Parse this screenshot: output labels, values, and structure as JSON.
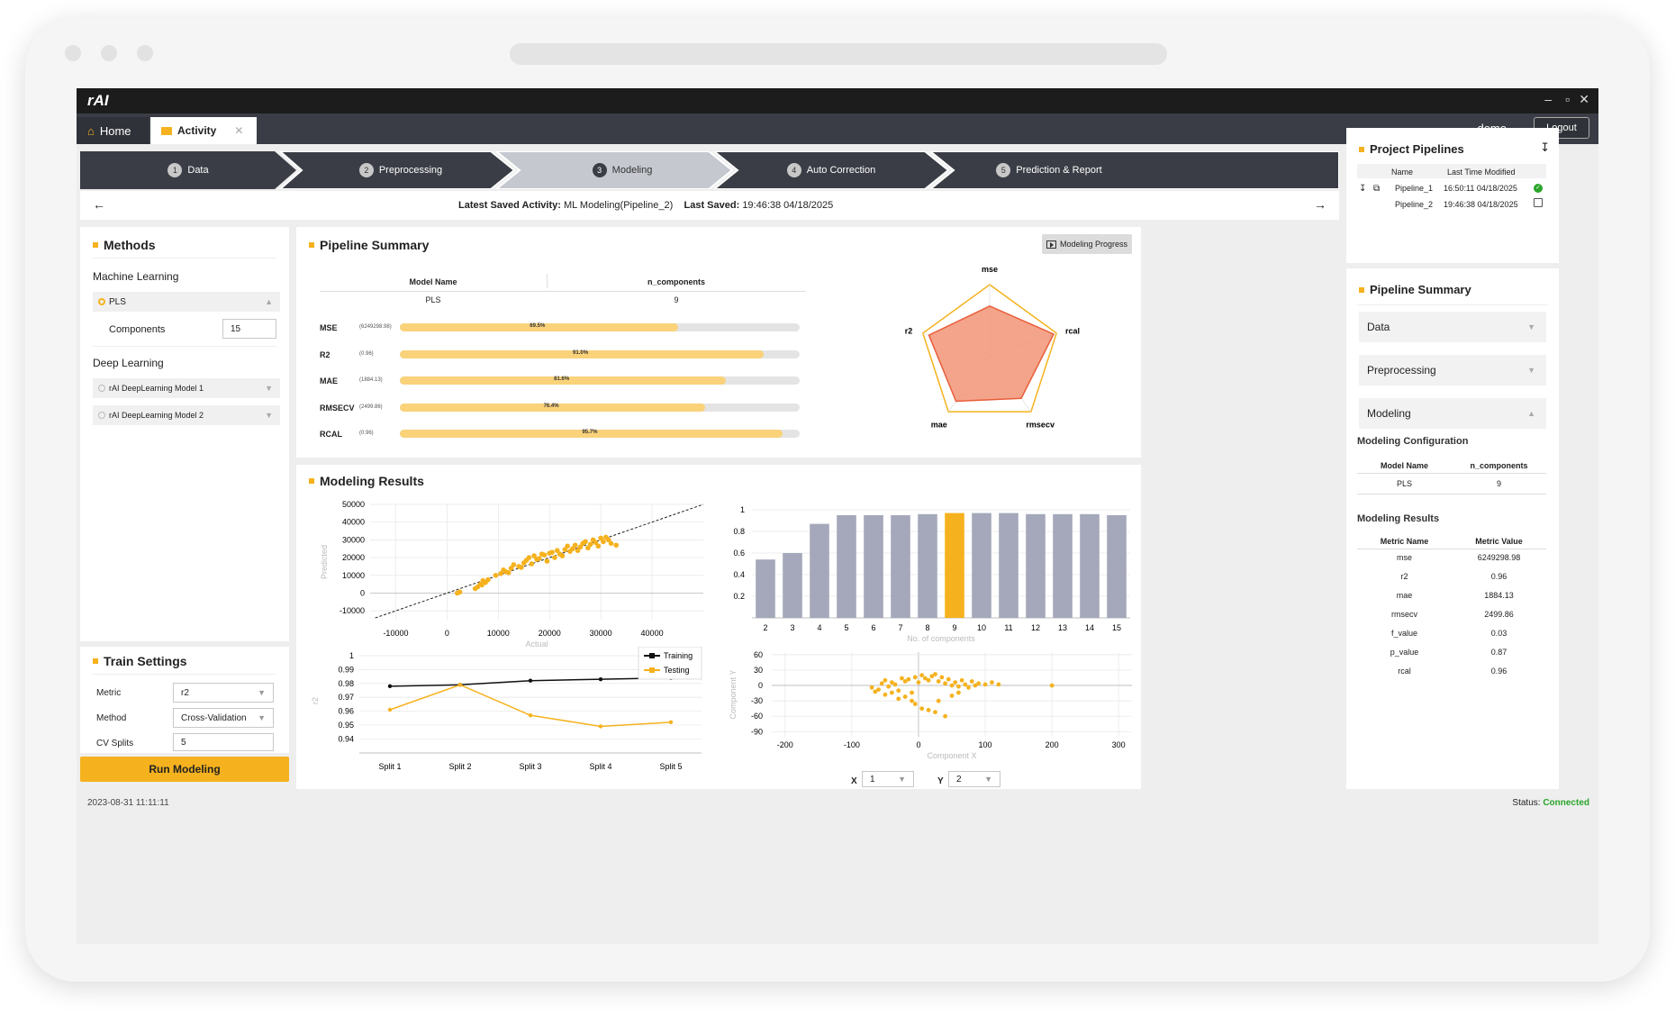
{
  "app": {
    "logo": "rAI",
    "window_controls": {
      "minimize": "–",
      "maximize": "▫",
      "close": "✕"
    },
    "tabs": [
      {
        "label": "Home"
      },
      {
        "label": "Activity"
      }
    ],
    "user": "demo",
    "logout_label": "Logout"
  },
  "steps": [
    {
      "num": "1",
      "label": "Data"
    },
    {
      "num": "2",
      "label": "Preprocessing"
    },
    {
      "num": "3",
      "label": "Modeling"
    },
    {
      "num": "4",
      "label": "Auto Correction"
    },
    {
      "num": "5",
      "label": "Prediction & Report"
    }
  ],
  "activity": {
    "latest_label": "Latest Saved Activity:",
    "latest_value": "ML Modeling(Pipeline_2)",
    "saved_label": "Last Saved:",
    "saved_value": "19:46:38 04/18/2025"
  },
  "methods": {
    "title": "Methods",
    "ml_heading": "Machine Learning",
    "pls_label": "PLS",
    "components_label": "Components",
    "components_value": "15",
    "dl_heading": "Deep Learning",
    "dl_models": [
      "rAI DeepLearning Model 1",
      "rAI DeepLearning Model 2"
    ]
  },
  "train": {
    "title": "Train Settings",
    "metric_label": "Metric",
    "metric_value": "r2",
    "method_label": "Method",
    "method_value": "Cross-Validation",
    "cv_label": "CV Splits",
    "cv_value": "5",
    "run_label": "Run Modeling"
  },
  "status_bar": {
    "timestamp": "2023-08-31 11:11:11",
    "status_label": "Status:",
    "status_value": "Connected"
  },
  "summary": {
    "title": "Pipeline Summary",
    "progress_button": "Modeling Progress",
    "col_model": "Model Name",
    "col_ncomp": "n_components",
    "model_name": "PLS",
    "n_components": "9",
    "metrics": [
      {
        "name": "MSE",
        "value": "(6249298.98)",
        "pct": "69.5%",
        "fraction": 0.695
      },
      {
        "name": "R2",
        "value": "(0.96)",
        "pct": "91.0%",
        "fraction": 0.91
      },
      {
        "name": "MAE",
        "value": "(1884.13)",
        "pct": "81.6%",
        "fraction": 0.816
      },
      {
        "name": "RMSECV",
        "value": "(2499.86)",
        "pct": "76.4%",
        "fraction": 0.764
      },
      {
        "name": "RCAL",
        "value": "(0.96)",
        "pct": "95.7%",
        "fraction": 0.957
      }
    ]
  },
  "results": {
    "title": "Modeling Results",
    "x_select_label": "X",
    "x_select_value": "1",
    "y_select_label": "Y",
    "y_select_value": "2"
  },
  "project": {
    "title": "Project Pipelines",
    "col_name": "Name",
    "col_modified": "Last Time Modified",
    "rows": [
      {
        "name": "Pipeline_1",
        "modified": "16:50:11 04/18/2025"
      },
      {
        "name": "Pipeline_2",
        "modified": "19:46:38 04/18/2025"
      }
    ]
  },
  "side_summary": {
    "title": "Pipeline Summary",
    "sections": [
      "Data",
      "Preprocessing",
      "Modeling"
    ],
    "config_title": "Modeling Configuration",
    "config_col1": "Model Name",
    "config_col2": "n_components",
    "config_model": "PLS",
    "config_ncomp": "9",
    "results_title": "Modeling Results",
    "results_col1": "Metric Name",
    "results_col2": "Metric Value",
    "results_rows": [
      {
        "name": "mse",
        "value": "6249298.98"
      },
      {
        "name": "r2",
        "value": "0.96"
      },
      {
        "name": "mae",
        "value": "1884.13"
      },
      {
        "name": "rmsecv",
        "value": "2499.86"
      },
      {
        "name": "f_value",
        "value": "0.03"
      },
      {
        "name": "p_value",
        "value": "0.87"
      },
      {
        "name": "rcal",
        "value": "0.96"
      }
    ]
  },
  "colors": {
    "accent": "#f5b21e",
    "dark": "#1c1c1c",
    "step_dark": "#3a3d45",
    "step_active": "#c5c8cf",
    "bar": "#a4a8ba",
    "connected": "#2aa52a"
  },
  "chart_data": [
    {
      "type": "radar",
      "axes": [
        "mse",
        "rcal",
        "rmsecv",
        "mae",
        "r2"
      ],
      "values": [
        0.695,
        0.957,
        0.764,
        0.816,
        0.91
      ]
    },
    {
      "type": "scatter",
      "xlabel": "Actual",
      "ylabel": "Predicted",
      "xlim": [
        -15000,
        50000
      ],
      "ylim": [
        -15000,
        50000
      ],
      "xticks": [
        -10000,
        0,
        10000,
        20000,
        30000,
        40000
      ],
      "yticks": [
        -10000,
        0,
        10000,
        20000,
        30000,
        40000,
        50000
      ],
      "points": [
        [
          2000,
          0
        ],
        [
          2500,
          600
        ],
        [
          5500,
          2500
        ],
        [
          6000,
          3500
        ],
        [
          6500,
          5000
        ],
        [
          7000,
          7000
        ],
        [
          6800,
          4600
        ],
        [
          9500,
          10000
        ],
        [
          10500,
          11000
        ],
        [
          11000,
          13000
        ],
        [
          11500,
          12000
        ],
        [
          12500,
          14000
        ],
        [
          13000,
          16000
        ],
        [
          14000,
          15000
        ],
        [
          15000,
          17000
        ],
        [
          15500,
          18500
        ],
        [
          16000,
          20000
        ],
        [
          17000,
          21000
        ],
        [
          17500,
          19000
        ],
        [
          18500,
          22000
        ],
        [
          19000,
          21500
        ],
        [
          20000,
          22500
        ],
        [
          20500,
          23000
        ],
        [
          21500,
          24000
        ],
        [
          22000,
          22000
        ],
        [
          23000,
          24500
        ],
        [
          23500,
          26500
        ],
        [
          24500,
          25000
        ],
        [
          25000,
          27000
        ],
        [
          26000,
          26000
        ],
        [
          26500,
          28000
        ],
        [
          27000,
          29000
        ],
        [
          28000,
          27500
        ],
        [
          28500,
          30000
        ],
        [
          29000,
          28500
        ],
        [
          30000,
          31000
        ],
        [
          30500,
          29000
        ],
        [
          31500,
          30000
        ],
        [
          33000,
          27000
        ],
        [
          32000,
          28000
        ],
        [
          29500,
          26500
        ],
        [
          27500,
          25500
        ],
        [
          24000,
          23500
        ],
        [
          22500,
          21000
        ],
        [
          21000,
          20000
        ],
        [
          18000,
          19500
        ],
        [
          16500,
          16500
        ],
        [
          14500,
          14500
        ],
        [
          12000,
          11500
        ],
        [
          8000,
          7500
        ],
        [
          7500,
          6000
        ],
        [
          19500,
          18000
        ],
        [
          25500,
          24000
        ],
        [
          31000,
          31500
        ]
      ],
      "reference_line": true
    },
    {
      "type": "bar",
      "xlabel": "No. of components",
      "ylabel": "",
      "ylim": [
        0,
        1
      ],
      "yticks": [
        0.2,
        0.4,
        0.6,
        0.8,
        1
      ],
      "categories": [
        "2",
        "3",
        "4",
        "5",
        "6",
        "7",
        "8",
        "9",
        "10",
        "11",
        "12",
        "13",
        "14",
        "15"
      ],
      "values": [
        0.54,
        0.6,
        0.87,
        0.95,
        0.95,
        0.95,
        0.96,
        0.97,
        0.97,
        0.97,
        0.96,
        0.96,
        0.96,
        0.95
      ],
      "highlight_index": 7
    },
    {
      "type": "line",
      "xlabel": "",
      "ylabel": "r2",
      "categories": [
        "Split 1",
        "Split 2",
        "Split 3",
        "Split 4",
        "Split 5"
      ],
      "ylim": [
        0.935,
        1.0
      ],
      "yticks": [
        0.94,
        0.95,
        0.96,
        0.97,
        0.98,
        0.99,
        1
      ],
      "series": [
        {
          "name": "Training",
          "values": [
            0.978,
            0.979,
            0.982,
            0.983,
            0.984
          ]
        },
        {
          "name": "Testing",
          "values": [
            0.961,
            0.979,
            0.957,
            0.949,
            0.952
          ]
        }
      ],
      "legend": "top-right"
    },
    {
      "type": "scatter",
      "xlabel": "Component X",
      "ylabel": "Component Y",
      "xlim": [
        -220,
        320
      ],
      "ylim": [
        -100,
        65
      ],
      "xticks": [
        -200,
        -100,
        0,
        100,
        200,
        300
      ],
      "yticks": [
        -90,
        -60,
        -30,
        0,
        30,
        60
      ],
      "points": [
        [
          -70,
          -4
        ],
        [
          -65,
          -12
        ],
        [
          -60,
          -8
        ],
        [
          -55,
          4
        ],
        [
          -50,
          10
        ],
        [
          -45,
          -2
        ],
        [
          -40,
          6
        ],
        [
          -35,
          2
        ],
        [
          -30,
          -10
        ],
        [
          -25,
          14
        ],
        [
          -20,
          8
        ],
        [
          -15,
          12
        ],
        [
          -10,
          -14
        ],
        [
          -5,
          16
        ],
        [
          0,
          6
        ],
        [
          5,
          20
        ],
        [
          10,
          14
        ],
        [
          15,
          10
        ],
        [
          20,
          18
        ],
        [
          25,
          22
        ],
        [
          30,
          8
        ],
        [
          35,
          16
        ],
        [
          40,
          4
        ],
        [
          45,
          12
        ],
        [
          50,
          0
        ],
        [
          55,
          6
        ],
        [
          60,
          -2
        ],
        [
          65,
          10
        ],
        [
          70,
          2
        ],
        [
          75,
          -4
        ],
        [
          80,
          8
        ],
        [
          85,
          0
        ],
        [
          90,
          4
        ],
        [
          100,
          2
        ],
        [
          110,
          6
        ],
        [
          120,
          2
        ],
        [
          200,
          0
        ],
        [
          -10,
          -30
        ],
        [
          -5,
          -36
        ],
        [
          5,
          -45
        ],
        [
          15,
          -48
        ],
        [
          25,
          -52
        ],
        [
          40,
          -60
        ],
        [
          -30,
          -26
        ],
        [
          -20,
          -22
        ],
        [
          -50,
          -18
        ],
        [
          -40,
          -14
        ],
        [
          30,
          -30
        ],
        [
          50,
          -20
        ],
        [
          60,
          -14
        ]
      ]
    }
  ]
}
